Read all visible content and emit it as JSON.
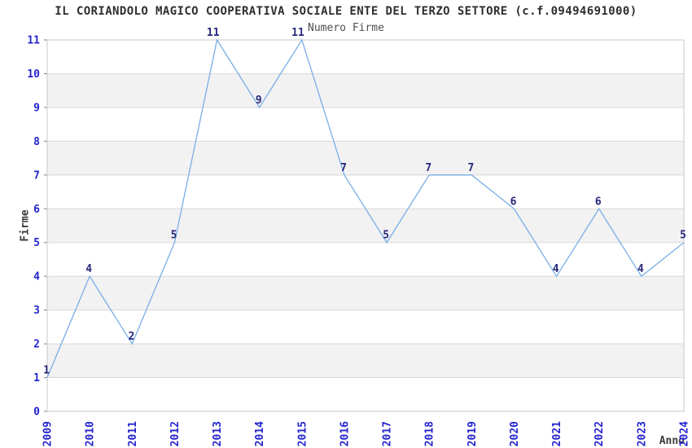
{
  "header": {
    "title": "IL CORIANDOLO MAGICO COOPERATIVA SOCIALE ENTE DEL TERZO SETTORE (c.f.09494691000)"
  },
  "chart_data": {
    "type": "line",
    "title": "Numero Firme",
    "xlabel": "Anno",
    "ylabel": "Firme",
    "categories": [
      "2009",
      "2010",
      "2011",
      "2012",
      "2013",
      "2014",
      "2015",
      "2016",
      "2017",
      "2018",
      "2019",
      "2020",
      "2021",
      "2022",
      "2023",
      "2024"
    ],
    "series": [
      {
        "name": "Numero Firme",
        "values": [
          1,
          4,
          2,
          5,
          11,
          9,
          11,
          7,
          5,
          7,
          7,
          6,
          4,
          6,
          4,
          5
        ]
      }
    ],
    "ylim": [
      0,
      11
    ],
    "yticks": [
      0,
      1,
      2,
      3,
      4,
      5,
      6,
      7,
      8,
      9,
      10,
      11
    ],
    "grid": "horizontal",
    "banding": "alternating-gray",
    "legend_position": "none",
    "data_labels_shown": true,
    "colors": {
      "line": "#79aee6",
      "tick_labels": "#2424cf",
      "data_labels": "#26267d",
      "band": "#f2f2f2",
      "gridline": "#d9d9d9",
      "frame": "#c8c8c8",
      "axis_tick": "#7f7f7f",
      "title_text": "#2e2e2e",
      "subtitle_text": "#4f4f4f",
      "axis_title_text": "#3a3a3a",
      "background": "#ffffff"
    }
  }
}
